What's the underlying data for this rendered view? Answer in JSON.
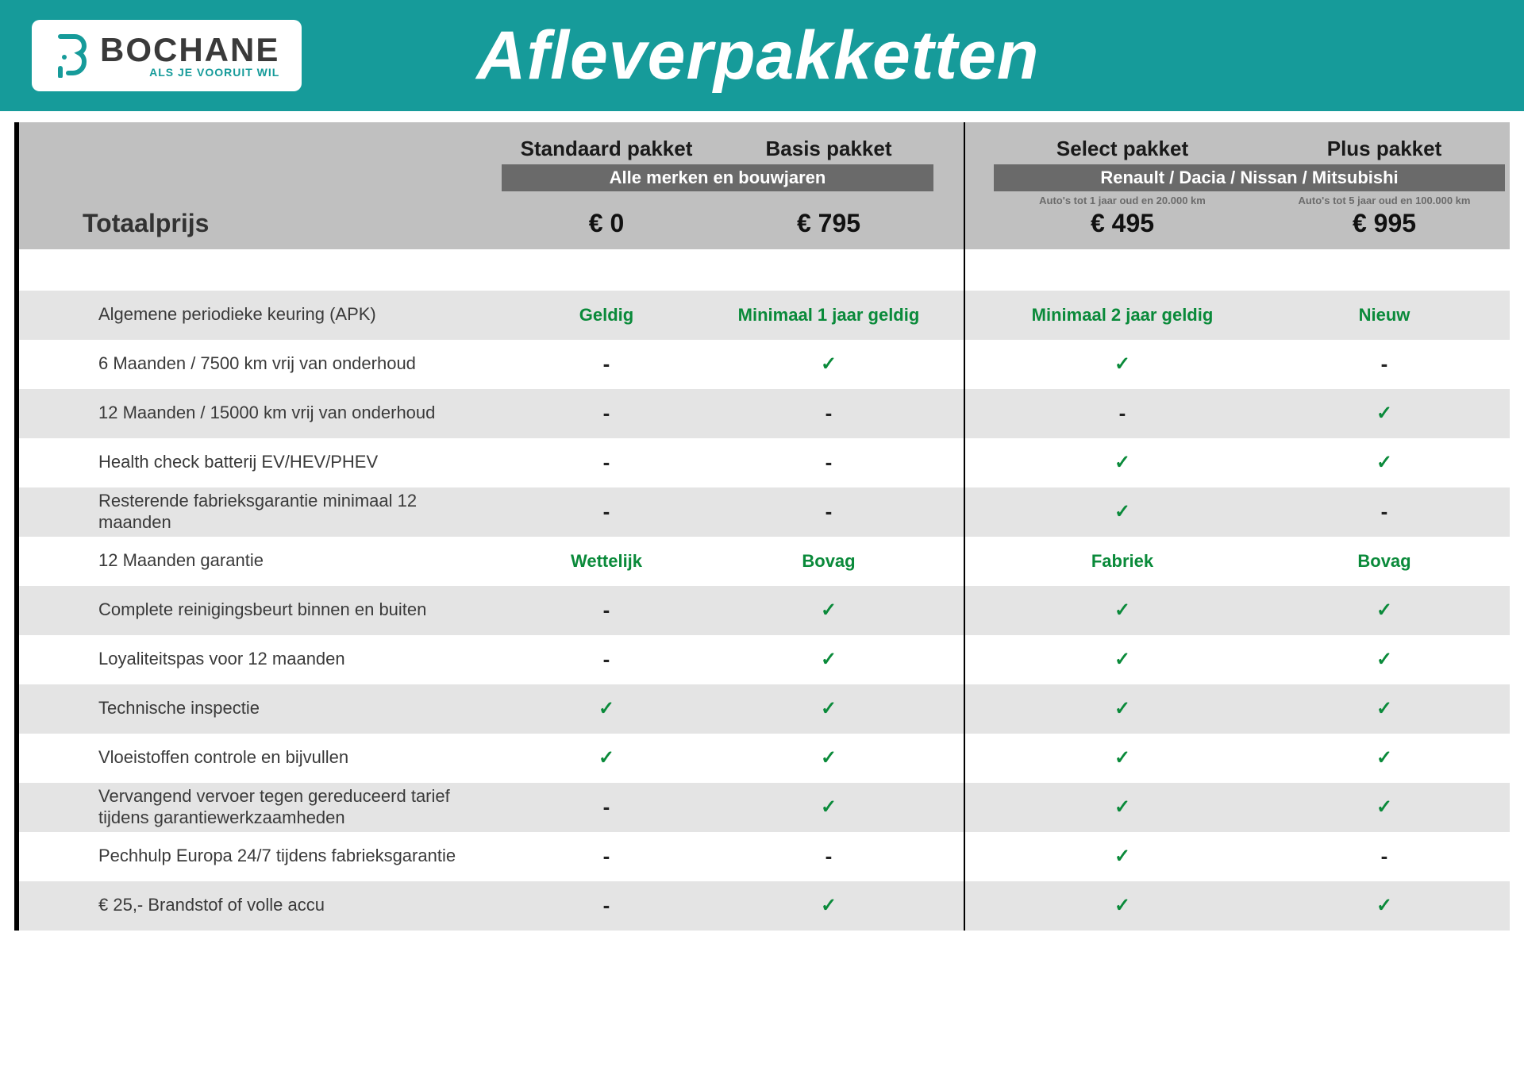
{
  "brand": {
    "name": "BOCHANE",
    "tagline": "ALS JE VOORUIT WIL",
    "accent": "#169b9a"
  },
  "page_title": "Afleverpakketten",
  "columns": [
    {
      "key": "std",
      "title": "Standaard pakket",
      "price": "€ 0",
      "note": ""
    },
    {
      "key": "basis",
      "title": "Basis pakket",
      "price": "€ 795",
      "note": ""
    },
    {
      "key": "select",
      "title": "Select pakket",
      "price": "€ 495",
      "note": "Auto's tot 1 jaar oud en 20.000 km"
    },
    {
      "key": "plus",
      "title": "Plus pakket",
      "price": "€ 995",
      "note": "Auto's tot 5 jaar oud en 100.000 km"
    }
  ],
  "group_banners": {
    "left": "Alle merken en bouwjaren",
    "right": "Renault / Dacia / Nissan / Mitsubishi"
  },
  "price_label": "Totaalprijs",
  "rows": [
    {
      "label": "Algemene periodieke keuring (APK)",
      "values": [
        "Geldig",
        "Minimaal 1 jaar geldig",
        "Minimaal 2 jaar geldig",
        "Nieuw"
      ],
      "kind": "text",
      "alt": true
    },
    {
      "label": "6 Maanden / 7500 km vrij van onderhoud",
      "values": [
        "-",
        "check",
        "check",
        "-"
      ],
      "kind": "mark",
      "alt": false
    },
    {
      "label": "12 Maanden / 15000 km vrij van onderhoud",
      "values": [
        "-",
        "-",
        "-",
        "check"
      ],
      "kind": "mark",
      "alt": true
    },
    {
      "label": "Health check batterij EV/HEV/PHEV",
      "values": [
        "-",
        "-",
        "check",
        "check"
      ],
      "kind": "mark",
      "alt": false
    },
    {
      "label": "Resterende fabrieksgarantie minimaal 12 maanden",
      "values": [
        "-",
        "-",
        "check",
        "-"
      ],
      "kind": "mark",
      "alt": true
    },
    {
      "label": "12 Maanden  garantie",
      "values": [
        "Wettelijk",
        "Bovag",
        "Fabriek",
        "Bovag"
      ],
      "kind": "text",
      "alt": false
    },
    {
      "label": "Complete reinigingsbeurt binnen en buiten",
      "values": [
        "-",
        "check",
        "check",
        "check"
      ],
      "kind": "mark",
      "alt": true
    },
    {
      "label": "Loyaliteitspas voor 12 maanden",
      "values": [
        "-",
        "check",
        "check",
        "check"
      ],
      "kind": "mark",
      "alt": false
    },
    {
      "label": "Technische inspectie",
      "values": [
        "check",
        "check",
        "check",
        "check"
      ],
      "kind": "mark",
      "alt": true
    },
    {
      "label": "Vloeistoffen controle en bijvullen",
      "values": [
        "check",
        "check",
        "check",
        "check"
      ],
      "kind": "mark",
      "alt": false
    },
    {
      "label": "Vervangend vervoer tegen gereduceerd tarief tijdens garantiewerkzaamheden",
      "values": [
        "-",
        "check",
        "check",
        "check"
      ],
      "kind": "mark",
      "alt": true
    },
    {
      "label": "Pechhulp Europa 24/7 tijdens fabrieksgarantie",
      "values": [
        "-",
        "-",
        "check",
        "-"
      ],
      "kind": "mark",
      "alt": false
    },
    {
      "label": "€ 25,- Brandstof of  volle accu",
      "values": [
        "-",
        "check",
        "check",
        "check"
      ],
      "kind": "mark",
      "alt": true
    }
  ],
  "colors": {
    "header_bg": "#169b9a",
    "thead_bg": "#c0c0c0",
    "banner_bg": "#6a6a6a",
    "alt_row": "#e4e4e4",
    "check_green": "#0a8a3a",
    "text_dark": "#1a1a1a"
  },
  "glyphs": {
    "check": "✓",
    "dash": "-"
  }
}
